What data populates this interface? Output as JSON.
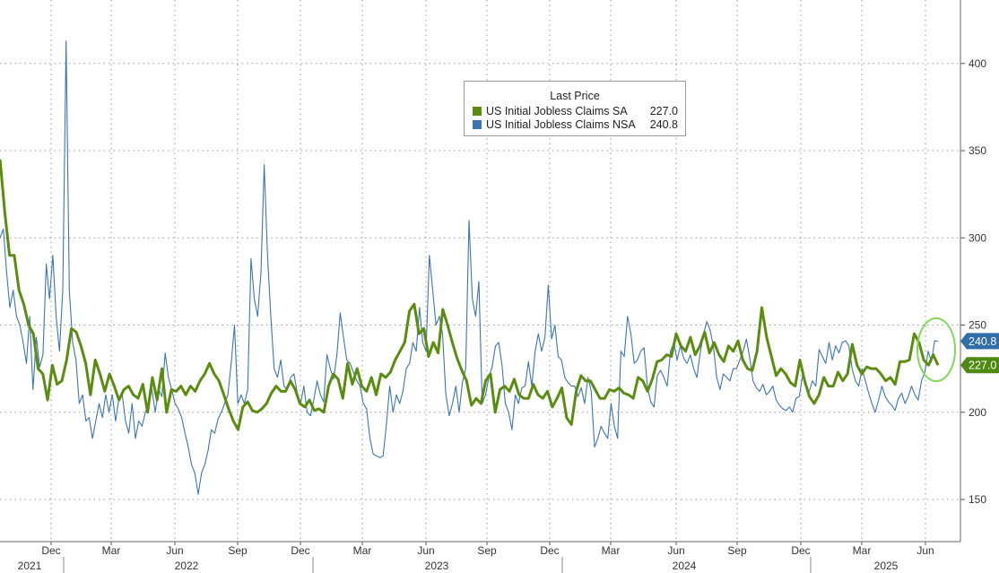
{
  "chart_data": {
    "type": "line",
    "legend": {
      "title": "Last Price",
      "placement": "top-center",
      "entries": [
        {
          "name": "US Initial Jobless Claims SA",
          "value": "227.0",
          "color": "#5a8c0f"
        },
        {
          "name": "US Initial Jobless Claims NSA",
          "value": "240.8",
          "color": "#3b75b4"
        }
      ]
    },
    "y_axis": {
      "side": "right",
      "range": [
        138,
        428
      ],
      "ticks": [
        "150",
        "200",
        "250",
        "300",
        "350",
        "400"
      ],
      "grid": true
    },
    "x_axis": {
      "month_ticks": [
        "Dec",
        "Mar",
        "Jun",
        "Sep",
        "Dec",
        "Mar",
        "Jun",
        "Sep",
        "Dec",
        "Mar",
        "Jun",
        "Sep",
        "Dec",
        "Mar",
        "Jun"
      ],
      "year_labels": [
        "2021",
        "2022",
        "2023",
        "2024",
        "2025"
      ],
      "grid": true
    },
    "last_value_tags": [
      {
        "series": "US Initial Jobless Claims NSA",
        "value": "240.8",
        "color": "#2f6ea8"
      },
      {
        "series": "US Initial Jobless Claims SA",
        "value": "227.0",
        "color": "#4e8a12"
      }
    ],
    "annotation": {
      "type": "ellipse",
      "color": "#7ed957",
      "note": "highlights latest values"
    },
    "series": [
      {
        "name": "US Initial Jobless Claims SA",
        "color": "#5a8c0f",
        "values": [
          345,
          315,
          290,
          290,
          270,
          262,
          250,
          245,
          225,
          222,
          207,
          227,
          216,
          218,
          230,
          248,
          246,
          238,
          228,
          210,
          230,
          222,
          212,
          222,
          215,
          207,
          213,
          215,
          210,
          208,
          216,
          200,
          220,
          207,
          225,
          200,
          213,
          212,
          215,
          210,
          215,
          212,
          218,
          222,
          228,
          222,
          218,
          210,
          202,
          195,
          190,
          203,
          206,
          201,
          200,
          202,
          205,
          211,
          215,
          212,
          212,
          218,
          213,
          205,
          203,
          207,
          201,
          202,
          200,
          215,
          222,
          219,
          208,
          228,
          216,
          225,
          215,
          212,
          220,
          210,
          222,
          220,
          223,
          230,
          235,
          240,
          258,
          262,
          245,
          248,
          232,
          240,
          234,
          259,
          250,
          240,
          231,
          224,
          218,
          204,
          208,
          205,
          218,
          222,
          200,
          213,
          215,
          212,
          219,
          210,
          208,
          208,
          216,
          210,
          208,
          212,
          203,
          208,
          214,
          197,
          193,
          212,
          221,
          218,
          218,
          213,
          208,
          208,
          213,
          212,
          214,
          211,
          210,
          208,
          220,
          218,
          212,
          219,
          229,
          230,
          233,
          232,
          245,
          238,
          235,
          243,
          233,
          238,
          246,
          234,
          240,
          233,
          229,
          238,
          235,
          241,
          230,
          225,
          224,
          235,
          260,
          243,
          232,
          221,
          225,
          222,
          217,
          215,
          230,
          218,
          209,
          205,
          210,
          220,
          215,
          215,
          223,
          218,
          222,
          239,
          227,
          222,
          226,
          225,
          225,
          222,
          218,
          220,
          216,
          229,
          229,
          230,
          245,
          240,
          230,
          227,
          233,
          227
        ],
        "last_value": "227.0"
      },
      {
        "name": "US Initial Jobless Claims NSA",
        "color": "#3b75b4",
        "values": [
          300,
          305,
          280,
          260,
          270,
          255,
          250,
          240,
          228,
          255,
          213,
          243,
          226,
          233,
          285,
          265,
          290,
          255,
          235,
          270,
          413,
          270,
          240,
          230,
          205,
          210,
          195,
          197,
          185,
          195,
          205,
          197,
          210,
          200,
          210,
          195,
          208,
          210,
          195,
          188,
          205,
          185,
          195,
          192,
          200,
          205,
          213,
          200,
          213,
          209,
          234,
          220,
          213,
          205,
          202,
          197,
          188,
          180,
          170,
          165,
          153,
          165,
          170,
          178,
          190,
          188,
          196,
          200,
          205,
          210,
          228,
          250,
          205,
          210,
          205,
          213,
          288,
          265,
          255,
          280,
          342,
          290,
          255,
          225,
          220,
          230,
          215,
          213,
          220,
          222,
          211,
          205,
          215,
          200,
          198,
          207,
          218,
          210,
          206,
          233,
          225,
          219,
          233,
          257,
          243,
          230,
          228,
          223,
          218,
          215,
          205,
          202,
          185,
          176,
          175,
          174,
          175,
          193,
          215,
          200,
          210,
          205,
          212,
          225,
          228,
          240,
          235,
          260,
          240,
          235,
          290,
          270,
          250,
          255,
          245,
          210,
          198,
          205,
          215,
          200,
          217,
          225,
          310,
          265,
          255,
          275,
          205,
          210,
          220,
          226,
          238,
          240,
          227,
          205,
          200,
          190,
          210,
          205,
          214,
          215,
          229,
          215,
          235,
          245,
          235,
          243,
          273,
          242,
          250,
          232,
          230,
          220,
          217,
          215,
          215,
          209,
          214,
          205,
          220,
          212,
          180,
          185,
          192,
          188,
          185,
          205,
          192,
          185,
          235,
          232,
          255,
          245,
          228,
          230,
          235,
          237,
          215,
          206,
          203,
          221,
          224,
          220,
          215,
          235,
          240,
          230,
          238,
          231,
          228,
          233,
          225,
          220,
          234,
          245,
          252,
          247,
          238,
          220,
          213,
          222,
          220,
          218,
          225,
          225,
          230,
          235,
          242,
          231,
          218,
          214,
          212,
          216,
          210,
          212,
          215,
          207,
          204,
          202,
          201,
          203,
          200,
          208,
          209,
          221,
          214,
          212,
          218,
          215,
          236,
          232,
          228,
          240,
          230,
          238,
          234,
          240,
          241,
          238,
          225,
          218,
          215,
          225,
          218,
          211,
          205,
          200,
          207,
          215,
          209,
          206,
          204,
          201,
          208,
          211,
          205,
          209,
          215,
          210,
          207,
          218,
          223,
          235,
          229,
          241,
          240.8
        ],
        "last_value": "240.8"
      }
    ]
  }
}
